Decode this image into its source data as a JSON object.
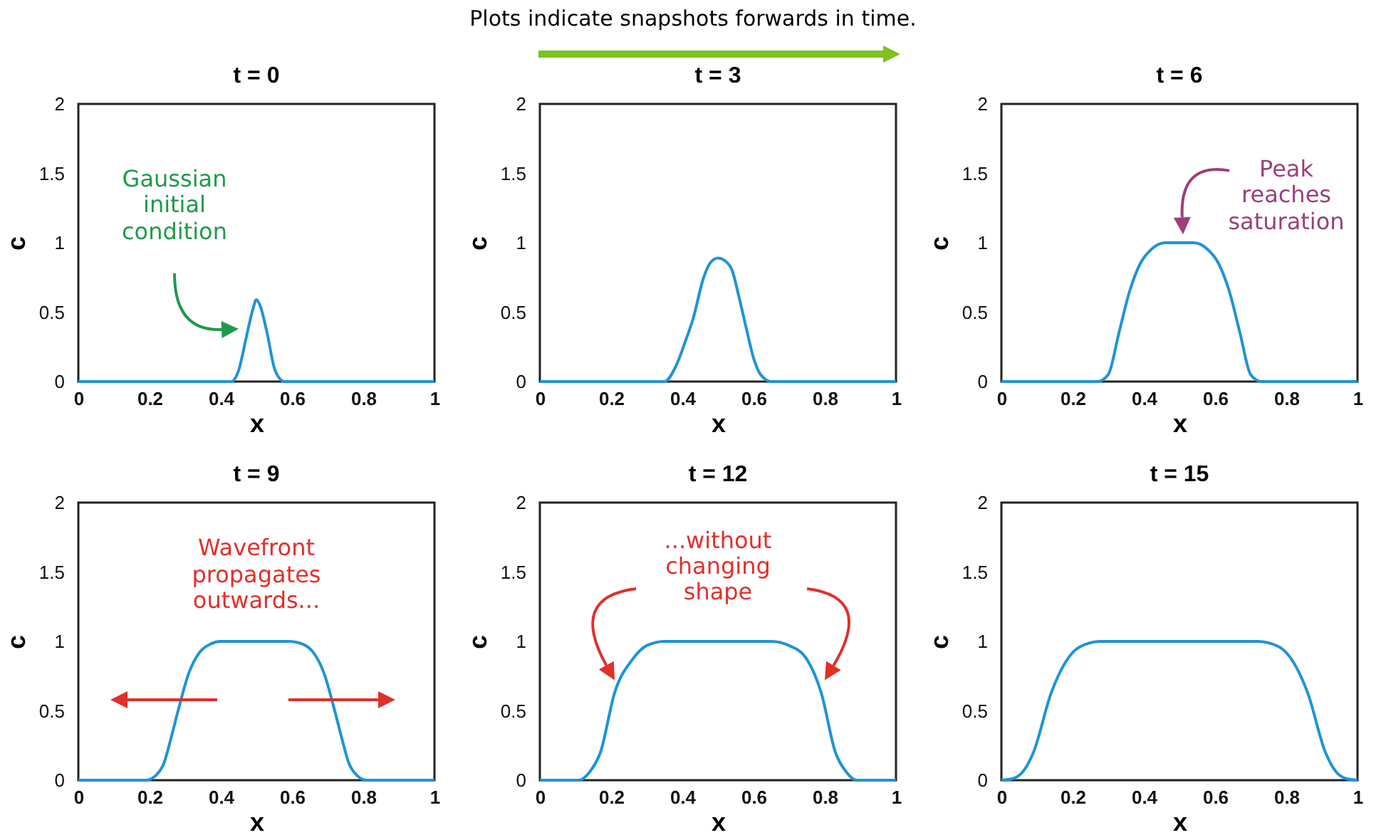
{
  "chart_data": [
    {
      "type": "line",
      "title": "t = 0",
      "xlabel": "x",
      "ylabel": "c",
      "xlim": [
        0,
        1
      ],
      "ylim": [
        0,
        2
      ],
      "xticks": [
        0,
        0.2,
        0.4,
        0.6,
        0.8,
        1
      ],
      "yticks": [
        0,
        0.5,
        1,
        1.5,
        2
      ],
      "grid": false,
      "annotations": [
        "Gaussian initial condition",
        "Plots indicate snapshots forwards in time."
      ],
      "x": [
        0,
        0.43,
        0.45,
        0.47,
        0.49,
        0.5,
        0.51,
        0.53,
        0.55,
        0.57,
        0.58,
        1
      ],
      "series": [
        {
          "color": "#1f93d8",
          "values": [
            0,
            0,
            0.08,
            0.3,
            0.52,
            0.59,
            0.55,
            0.35,
            0.1,
            0.01,
            0,
            0
          ]
        }
      ]
    },
    {
      "type": "line",
      "title": "t = 3",
      "xlabel": "x",
      "ylabel": "c",
      "xlim": [
        0,
        1
      ],
      "ylim": [
        0,
        2
      ],
      "xticks": [
        0,
        0.2,
        0.4,
        0.6,
        0.8,
        1
      ],
      "yticks": [
        0,
        0.5,
        1,
        1.5,
        2
      ],
      "grid": false,
      "x": [
        0,
        0.35,
        0.38,
        0.41,
        0.43,
        0.46,
        0.48,
        0.5,
        0.52,
        0.54,
        0.56,
        0.58,
        0.6,
        0.62,
        0.65,
        1
      ],
      "series": [
        {
          "color": "#1f93d8",
          "values": [
            0,
            0,
            0.1,
            0.3,
            0.45,
            0.75,
            0.86,
            0.89,
            0.87,
            0.8,
            0.6,
            0.38,
            0.17,
            0.05,
            0,
            0
          ]
        }
      ]
    },
    {
      "type": "line",
      "title": "t = 6",
      "xlabel": "x",
      "ylabel": "c",
      "xlim": [
        0,
        1
      ],
      "ylim": [
        0,
        2
      ],
      "xticks": [
        0,
        0.2,
        0.4,
        0.6,
        0.8,
        1
      ],
      "yticks": [
        0,
        0.5,
        1,
        1.5,
        2
      ],
      "grid": false,
      "annotations": [
        "Peak reaches saturation"
      ],
      "x": [
        0,
        0.27,
        0.3,
        0.33,
        0.36,
        0.39,
        0.42,
        0.46,
        0.54,
        0.58,
        0.61,
        0.64,
        0.67,
        0.7,
        0.73,
        1
      ],
      "series": [
        {
          "color": "#1f93d8",
          "values": [
            0,
            0,
            0.05,
            0.35,
            0.65,
            0.85,
            0.95,
            1,
            1,
            0.95,
            0.85,
            0.65,
            0.35,
            0.05,
            0,
            0
          ]
        }
      ]
    },
    {
      "type": "line",
      "title": "t = 9",
      "xlabel": "x",
      "ylabel": "c",
      "xlim": [
        0,
        1
      ],
      "ylim": [
        0,
        2
      ],
      "xticks": [
        0,
        0.2,
        0.4,
        0.6,
        0.8,
        1
      ],
      "yticks": [
        0,
        0.5,
        1,
        1.5,
        2
      ],
      "grid": false,
      "annotations": [
        "Wavefront propagates outwards..."
      ],
      "x": [
        0,
        0.19,
        0.22,
        0.24,
        0.26,
        0.28,
        0.31,
        0.34,
        0.37,
        0.4,
        0.59,
        0.63,
        0.66,
        0.69,
        0.72,
        0.74,
        0.76,
        0.78,
        0.81,
        1
      ],
      "series": [
        {
          "color": "#1f93d8",
          "values": [
            0,
            0,
            0.04,
            0.12,
            0.3,
            0.5,
            0.77,
            0.92,
            0.98,
            1,
            1,
            0.98,
            0.92,
            0.77,
            0.5,
            0.3,
            0.12,
            0.04,
            0,
            0
          ]
        }
      ]
    },
    {
      "type": "line",
      "title": "t = 12",
      "xlabel": "x",
      "ylabel": "c",
      "xlim": [
        0,
        1
      ],
      "ylim": [
        0,
        2
      ],
      "xticks": [
        0,
        0.2,
        0.4,
        0.6,
        0.8,
        1
      ],
      "yticks": [
        0,
        0.5,
        1,
        1.5,
        2
      ],
      "grid": false,
      "annotations": [
        "...without changing shape"
      ],
      "x": [
        0,
        0.11,
        0.14,
        0.17,
        0.21,
        0.26,
        0.3,
        0.35,
        0.65,
        0.7,
        0.75,
        0.79,
        0.83,
        0.86,
        0.89,
        1
      ],
      "series": [
        {
          "color": "#1f93d8",
          "values": [
            0,
            0,
            0.06,
            0.2,
            0.63,
            0.87,
            0.97,
            1,
            1,
            0.97,
            0.87,
            0.63,
            0.2,
            0.06,
            0,
            0
          ]
        }
      ]
    },
    {
      "type": "line",
      "title": "t = 15",
      "xlabel": "x",
      "ylabel": "c",
      "xlim": [
        0,
        1
      ],
      "ylim": [
        0,
        2
      ],
      "xticks": [
        0,
        0.2,
        0.4,
        0.6,
        0.8,
        1
      ],
      "yticks": [
        0,
        0.5,
        1,
        1.5,
        2
      ],
      "grid": false,
      "x": [
        0,
        0.03,
        0.06,
        0.09,
        0.14,
        0.18,
        0.22,
        0.28,
        0.72,
        0.78,
        0.82,
        0.86,
        0.91,
        0.94,
        0.97,
        1
      ],
      "series": [
        {
          "color": "#1f93d8",
          "values": [
            0,
            0.01,
            0.06,
            0.2,
            0.63,
            0.85,
            0.96,
            1,
            1,
            0.96,
            0.85,
            0.63,
            0.2,
            0.06,
            0.01,
            0
          ]
        }
      ]
    }
  ]
}
